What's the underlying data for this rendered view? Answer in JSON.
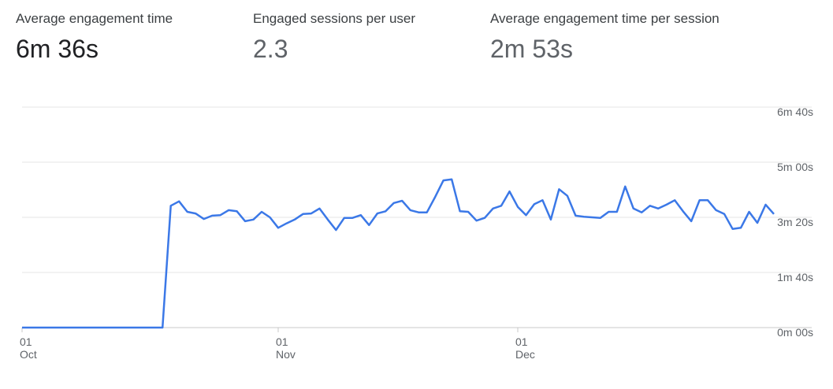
{
  "metrics": [
    {
      "label": "Average engagement time",
      "value": "6m 36s"
    },
    {
      "label": "Engaged sessions per user",
      "value": "2.3"
    },
    {
      "label": "Average engagement time per session",
      "value": "2m 53s"
    }
  ],
  "chart_data": {
    "type": "line",
    "categories": [
      "01 Oct",
      null,
      null,
      null,
      null,
      null,
      null,
      null,
      null,
      null,
      null,
      null,
      null,
      null,
      null,
      null,
      null,
      null,
      null,
      null,
      null,
      null,
      null,
      null,
      null,
      null,
      null,
      null,
      null,
      null,
      null,
      "01 Nov",
      null,
      null,
      null,
      null,
      null,
      null,
      null,
      null,
      null,
      null,
      null,
      null,
      null,
      null,
      null,
      null,
      null,
      null,
      null,
      null,
      null,
      null,
      null,
      null,
      null,
      null,
      null,
      null,
      "01 Dec",
      null,
      null,
      null,
      null,
      null,
      null,
      null,
      null,
      null,
      null,
      null,
      null,
      null,
      null,
      null,
      null,
      null,
      null,
      null,
      null,
      null,
      null,
      null,
      null,
      null,
      null,
      null,
      null,
      null,
      null,
      null
    ],
    "series": [
      {
        "name": "Average engagement time",
        "color": "#3b78e7",
        "values": [
          0,
          0,
          0,
          0,
          0,
          0,
          0,
          0,
          0,
          0,
          0,
          0,
          0,
          0,
          0,
          0,
          0,
          0,
          221,
          229,
          210,
          207,
          197,
          203,
          204,
          213,
          211,
          193,
          196,
          210,
          200,
          181,
          189,
          196,
          206,
          207,
          216,
          196,
          177,
          199,
          199,
          204,
          186,
          207,
          211,
          226,
          230,
          213,
          209,
          209,
          237,
          267,
          269,
          211,
          210,
          194,
          199,
          216,
          221,
          247,
          219,
          204,
          224,
          231,
          196,
          251,
          239,
          203,
          201,
          200,
          199,
          210,
          210,
          256,
          216,
          209,
          221,
          216,
          223,
          231,
          211,
          193,
          231,
          231,
          213,
          206,
          179,
          181,
          210,
          190,
          223,
          206
        ]
      }
    ],
    "ylim": [
      0,
      400
    ],
    "yticks": [
      {
        "value": 0,
        "label": "0m 00s"
      },
      {
        "value": 100,
        "label": "1m 40s"
      },
      {
        "value": 200,
        "label": "3m 20s"
      },
      {
        "value": 300,
        "label": "5m 00s"
      },
      {
        "value": 400,
        "label": "6m 40s"
      }
    ],
    "grid": true
  }
}
